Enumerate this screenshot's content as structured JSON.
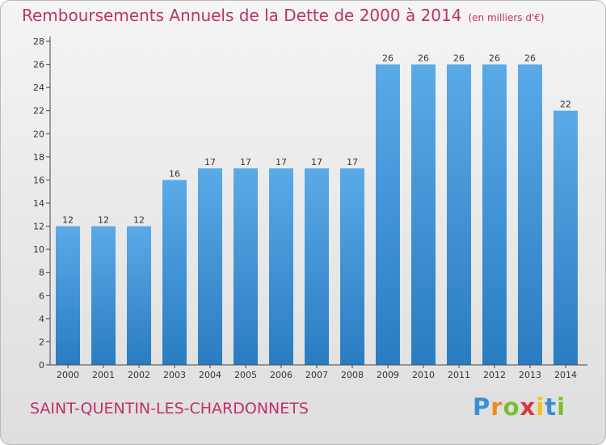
{
  "header": {
    "title": "Remboursements Annuels de la Dette de 2000 à 2014",
    "unit": "(en milliers d'€)"
  },
  "chart_data": {
    "type": "bar",
    "title": "Remboursements Annuels de la Dette de 2000 à 2014",
    "subtitle": "(en milliers d'€)",
    "xlabel": "",
    "ylabel": "",
    "categories": [
      "2000",
      "2001",
      "2002",
      "2003",
      "2004",
      "2005",
      "2006",
      "2007",
      "2008",
      "2009",
      "2010",
      "2011",
      "2012",
      "2013",
      "2014"
    ],
    "values": [
      12,
      12,
      12,
      16,
      17,
      17,
      17,
      17,
      17,
      26,
      26,
      26,
      26,
      26,
      22
    ],
    "ylim": [
      0,
      28
    ],
    "yticks": [
      0,
      2,
      4,
      6,
      8,
      10,
      12,
      14,
      16,
      18,
      20,
      22,
      24,
      26,
      28
    ],
    "grid": false,
    "legend": "none",
    "data_labels": true,
    "bar_color_top": "#5aaae8",
    "bar_color_bottom": "#2a7cc1"
  },
  "footer": {
    "town": "SAINT-QUENTIN-LES-CHARDONNETS",
    "brand": [
      "P",
      "r",
      "o",
      "x",
      "i",
      "t",
      "i"
    ],
    "brand_colors": [
      "#3a8fd6",
      "#f08a1c",
      "#7abf2f",
      "#d83a3a",
      "#f0c419",
      "#3a8fd6",
      "#7abf2f"
    ]
  },
  "colors": {
    "accent": "#c0306a",
    "axis": "#444444"
  }
}
